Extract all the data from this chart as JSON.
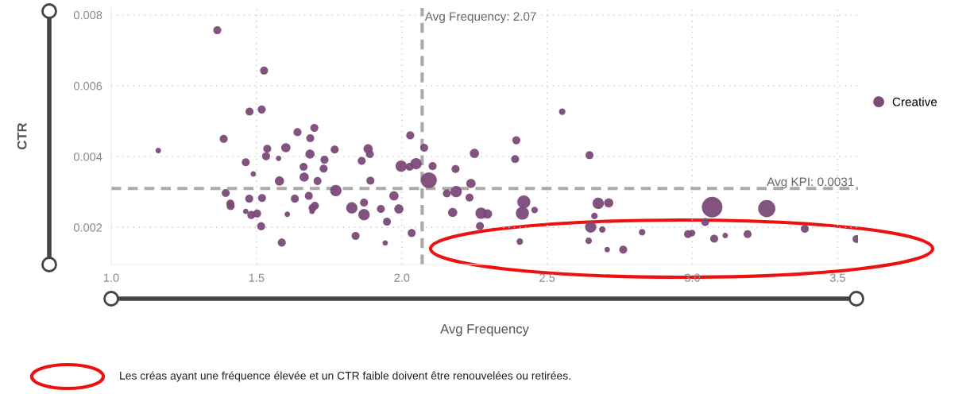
{
  "chart_data": {
    "type": "bubble",
    "xlabel": "Avg Frequency",
    "ylabel": "CTR",
    "xlim": [
      1.0,
      3.57
    ],
    "ylim": [
      0.00095,
      0.0082
    ],
    "xticks": [
      {
        "value": 1.0,
        "label": "1.0"
      },
      {
        "value": 1.5,
        "label": "1.5"
      },
      {
        "value": 2.0,
        "label": "2.0"
      },
      {
        "value": 2.5,
        "label": "2.5"
      },
      {
        "value": 3.0,
        "label": "3.0"
      },
      {
        "value": 3.5,
        "label": "3.5"
      }
    ],
    "yticks": [
      0.002,
      0.004,
      0.006,
      0.008
    ],
    "grid": true,
    "legend": "right",
    "series": [
      {
        "name": "Creative",
        "color": "#7b4a78",
        "x": [
          1.365,
          1.526,
          1.476,
          1.518,
          1.387,
          1.162,
          1.463,
          1.489,
          1.537,
          1.533,
          1.576,
          1.601,
          1.641,
          1.699,
          1.685,
          1.684,
          1.734,
          1.731,
          1.662,
          1.664,
          1.579,
          1.71,
          1.769,
          1.884,
          1.89,
          1.862,
          1.892,
          2.029,
          2.077,
          1.998,
          2.027,
          2.049,
          2.106,
          2.093,
          1.773,
          1.394,
          1.41,
          1.411,
          1.475,
          1.519,
          1.463,
          1.482,
          1.502,
          1.516,
          1.587,
          1.606,
          1.632,
          1.68,
          1.701,
          1.693,
          1.691,
          1.828,
          1.87,
          1.87,
          1.928,
          1.973,
          1.99,
          1.949,
          1.841,
          1.943,
          2.034,
          2.185,
          2.25,
          2.155,
          2.187,
          2.238,
          2.233,
          2.175,
          2.273,
          2.295,
          2.269,
          2.394,
          2.39,
          2.42,
          2.415,
          2.457,
          2.406,
          2.552,
          2.646,
          2.676,
          2.712,
          2.663,
          2.65,
          2.69,
          2.643,
          2.707,
          2.762,
          2.827,
          2.985,
          2.999,
          3.068,
          3.044,
          3.075,
          3.113,
          3.19,
          3.256,
          3.387,
          3.565
        ],
        "values": [
          0.00757,
          0.00643,
          0.00527,
          0.00533,
          0.0045,
          0.00417,
          0.00384,
          0.00351,
          0.00422,
          0.00401,
          0.00395,
          0.00425,
          0.00469,
          0.00481,
          0.00452,
          0.00407,
          0.00391,
          0.00366,
          0.00371,
          0.00342,
          0.00331,
          0.00331,
          0.0042,
          0.00422,
          0.00407,
          0.00388,
          0.00332,
          0.0046,
          0.00425,
          0.00373,
          0.00371,
          0.0038,
          0.00373,
          0.00333,
          0.00304,
          0.00297,
          0.00267,
          0.0026,
          0.00281,
          0.00283,
          0.00245,
          0.00235,
          0.00239,
          0.00203,
          0.00157,
          0.00237,
          0.00281,
          0.00289,
          0.00261,
          0.00255,
          0.00245,
          0.00255,
          0.0027,
          0.00236,
          0.00252,
          0.00289,
          0.00252,
          0.00216,
          0.00176,
          0.00156,
          0.00184,
          0.00365,
          0.00409,
          0.00296,
          0.00301,
          0.00324,
          0.00284,
          0.00242,
          0.0024,
          0.00238,
          0.00204,
          0.00446,
          0.00393,
          0.00272,
          0.0024,
          0.00249,
          0.0016,
          0.00527,
          0.00404,
          0.00268,
          0.00269,
          0.00232,
          0.00201,
          0.00194,
          0.00162,
          0.00137,
          0.00137,
          0.00186,
          0.00181,
          0.00184,
          0.00257,
          0.00215,
          0.00168,
          0.00177,
          0.00181,
          0.00253,
          0.00196,
          0.00167
        ],
        "sizes": [
          0.15,
          0.15,
          0.15,
          0.15,
          0.15,
          0.07,
          0.15,
          0.07,
          0.15,
          0.15,
          0.07,
          0.2,
          0.15,
          0.15,
          0.15,
          0.2,
          0.15,
          0.15,
          0.15,
          0.2,
          0.2,
          0.15,
          0.15,
          0.2,
          0.15,
          0.15,
          0.15,
          0.15,
          0.15,
          0.3,
          0.15,
          0.3,
          0.15,
          0.6,
          0.3,
          0.15,
          0.15,
          0.15,
          0.15,
          0.15,
          0.07,
          0.15,
          0.15,
          0.15,
          0.15,
          0.07,
          0.15,
          0.15,
          0.15,
          0.15,
          0.07,
          0.3,
          0.15,
          0.3,
          0.15,
          0.2,
          0.2,
          0.15,
          0.15,
          0.07,
          0.15,
          0.15,
          0.2,
          0.15,
          0.3,
          0.2,
          0.15,
          0.2,
          0.3,
          0.2,
          0.15,
          0.15,
          0.15,
          0.4,
          0.4,
          0.1,
          0.1,
          0.1,
          0.15,
          0.3,
          0.2,
          0.1,
          0.3,
          0.1,
          0.1,
          0.07,
          0.15,
          0.1,
          0.15,
          0.1,
          1,
          0.15,
          0.15,
          0.07,
          0.15,
          0.7,
          0.15,
          0.15
        ]
      }
    ],
    "ref_lines": [
      {
        "axis": "x",
        "value": 2.07,
        "label": "Avg Frequency: 2.07",
        "color": "#aaaaaa",
        "line_style": "dashed"
      },
      {
        "axis": "y",
        "value": 0.0031,
        "label": "Avg KPI: 0.0031",
        "color": "#aaaaaa",
        "line_style": "dashed"
      }
    ],
    "annotations": [
      "Les créas ayant une fréquence élevée et un CTR faible doivent être renouvelées ou retirées."
    ]
  }
}
